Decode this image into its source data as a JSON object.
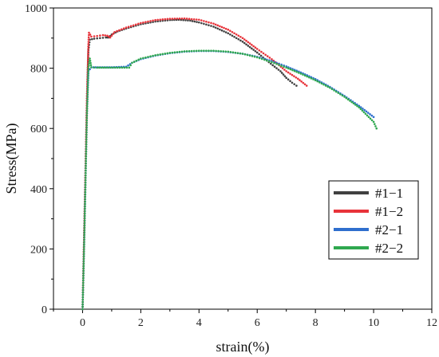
{
  "chart_data": {
    "type": "line",
    "xlabel": "strain(%)",
    "ylabel": "Stress(MPa)",
    "xlim": [
      -1,
      12
    ],
    "ylim": [
      0,
      1000
    ],
    "xticks": [
      0,
      2,
      4,
      6,
      8,
      10,
      12
    ],
    "yticks": [
      0,
      200,
      400,
      600,
      800,
      1000
    ],
    "legend_position": "center-right",
    "series": [
      {
        "name": "#1−1",
        "color": "#404040",
        "x": [
          0.0,
          0.05,
          0.1,
          0.15,
          0.2,
          0.25,
          0.4,
          0.6,
          0.8,
          0.9,
          1.0,
          1.2,
          1.5,
          2.0,
          2.5,
          3.0,
          3.3,
          3.7,
          4.0,
          4.5,
          5.0,
          5.5,
          6.0,
          6.4,
          6.8,
          7.0,
          7.2,
          7.35
        ],
        "y": [
          0,
          230,
          460,
          700,
          860,
          895,
          898,
          900,
          902,
          902,
          912,
          922,
          932,
          946,
          955,
          960,
          961,
          958,
          952,
          938,
          916,
          888,
          852,
          820,
          790,
          768,
          752,
          742
        ]
      },
      {
        "name": "#1−2",
        "color": "#e8333a",
        "x": [
          0.0,
          0.05,
          0.1,
          0.15,
          0.2,
          0.22,
          0.3,
          0.5,
          0.7,
          0.85,
          0.95,
          1.1,
          1.5,
          2.0,
          2.5,
          3.0,
          3.5,
          4.0,
          4.5,
          5.0,
          5.5,
          6.0,
          6.5,
          7.0,
          7.4,
          7.7
        ],
        "y": [
          0,
          230,
          460,
          700,
          880,
          918,
          905,
          907,
          910,
          908,
          902,
          920,
          935,
          950,
          960,
          964,
          965,
          961,
          948,
          928,
          900,
          864,
          830,
          790,
          765,
          742
        ]
      },
      {
        "name": "#2−1",
        "color": "#2f6fce",
        "x": [
          0.0,
          0.05,
          0.1,
          0.15,
          0.2,
          0.3,
          0.6,
          1.0,
          1.5,
          1.7,
          2.0,
          2.5,
          3.0,
          3.5,
          4.0,
          4.5,
          5.0,
          5.5,
          6.0,
          6.5,
          7.0,
          7.5,
          8.0,
          8.5,
          9.0,
          9.5,
          10.0
        ],
        "y": [
          0,
          200,
          420,
          650,
          790,
          803,
          803,
          803,
          805,
          818,
          830,
          842,
          850,
          855,
          857,
          857,
          854,
          848,
          838,
          824,
          806,
          786,
          764,
          738,
          708,
          675,
          638
        ]
      },
      {
        "name": "#2−2",
        "color": "#2fa84f",
        "x": [
          0.0,
          0.05,
          0.1,
          0.15,
          0.2,
          0.25,
          0.3,
          0.5,
          0.8,
          1.2,
          1.6,
          1.7,
          2.0,
          2.5,
          3.0,
          3.5,
          4.0,
          4.5,
          5.0,
          5.5,
          6.0,
          6.5,
          7.0,
          7.5,
          8.0,
          8.5,
          9.0,
          9.5,
          10.0,
          10.1
        ],
        "y": [
          0,
          200,
          420,
          650,
          800,
          832,
          803,
          802,
          802,
          802,
          802,
          818,
          832,
          843,
          851,
          856,
          858,
          858,
          855,
          848,
          836,
          820,
          802,
          782,
          760,
          735,
          705,
          670,
          622,
          600
        ]
      }
    ]
  }
}
